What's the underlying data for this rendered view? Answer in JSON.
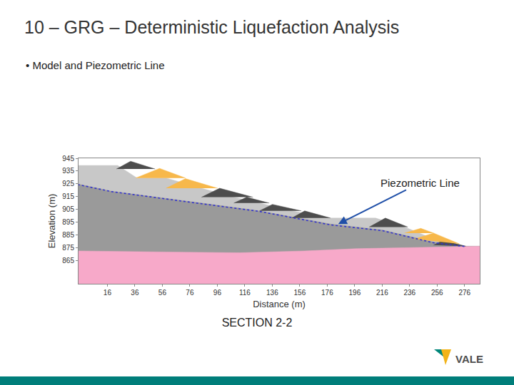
{
  "chart_data": {
    "type": "area",
    "title": "10 – GRG – Deterministic Liquefaction Analysis",
    "subtitle": "• Model and Piezometric Line",
    "caption": "SECTION 2-2",
    "logo": "VALE",
    "x_label": "Distance (m)",
    "y_label": "Elevation (m)",
    "xlim": [
      -5,
      287
    ],
    "ylim": [
      847,
      945
    ],
    "xticks": [
      16,
      36,
      56,
      76,
      96,
      116,
      136,
      156,
      176,
      196,
      216,
      236,
      256,
      276
    ],
    "yticks": [
      865,
      875,
      885,
      895,
      905,
      915,
      925,
      935,
      945
    ],
    "grid": false,
    "series": [
      {
        "type": "area",
        "color": "#c8c8c8",
        "x": [
          -5.6,
          23.5,
          37.6,
          58.7,
          84.5,
          108,
          126.7,
          150.2,
          178.4,
          211.2,
          234.7,
          253.4,
          276.9,
          287
        ],
        "values": [
          939.4,
          939.4,
          929.6,
          929.6,
          921.6,
          914.6,
          910,
          903.9,
          898.3,
          898.3,
          890.3,
          881.9,
          876.3,
          876.3
        ]
      },
      {
        "type": "area",
        "color": "#9a9a9a",
        "x": [
          -5.6,
          18.8,
          84.5,
          126.7,
          178.4,
          216,
          253.4,
          276.9,
          287
        ],
        "values": [
          924.9,
          919.3,
          910,
          903.9,
          893.6,
          889,
          879.6,
          876.3,
          876.3
        ]
      },
      {
        "type": "area",
        "color": "#f7a9c9",
        "x": [
          -5.6,
          112.4,
          159.3,
          196.9,
          287
        ],
        "values": [
          872.6,
          871.2,
          872.6,
          874.4,
          876.3
        ]
      },
      {
        "type": "polygon",
        "color": "#4d4d4d",
        "x": [
          22.6,
          32.9,
          50.7,
          null,
          84.5,
          97.7,
          122,
          null,
          108,
          117.4,
          133.8,
          null,
          126.7,
          136.1,
          157.2,
          null,
          150.2,
          159.6,
          178.4,
          null,
          206.5,
          218.3,
          234.7,
          null,
          253.4,
          260.5,
          276.9
        ],
        "values": [
          936.6,
          942.7,
          936.6,
          null,
          914.6,
          921.6,
          914.6,
          null,
          910,
          914.6,
          910,
          null,
          903.9,
          909,
          903.9,
          null,
          898.3,
          903.9,
          898.3,
          null,
          891.3,
          898.3,
          891.3,
          null,
          877.2,
          881,
          876.3
        ]
      },
      {
        "type": "polygon",
        "color": "#f7b84b",
        "x": [
          36.6,
          54,
          72.8,
          null,
          58.7,
          72.8,
          96.2,
          null,
          232.3,
          244.1,
          253.4,
          null,
          239.4,
          253.4,
          272.2
        ],
        "values": [
          929.6,
          937.1,
          929.6,
          null,
          921.6,
          929.1,
          921.6,
          null,
          886.6,
          890.3,
          886.6,
          null,
          881.9,
          886.6,
          878.2
        ]
      },
      {
        "type": "line",
        "color": "#3333cc",
        "line_style": "dotted",
        "x": [
          -5.6,
          18.8,
          84.5,
          126.7,
          178.4,
          216,
          253.4,
          276.9
        ],
        "values": [
          924.5,
          919,
          909.5,
          903.5,
          893,
          888.5,
          879,
          876
        ]
      }
    ],
    "annotations": [
      {
        "text": "Piezometric Line",
        "x": 184,
        "y": 893.6
      }
    ]
  }
}
